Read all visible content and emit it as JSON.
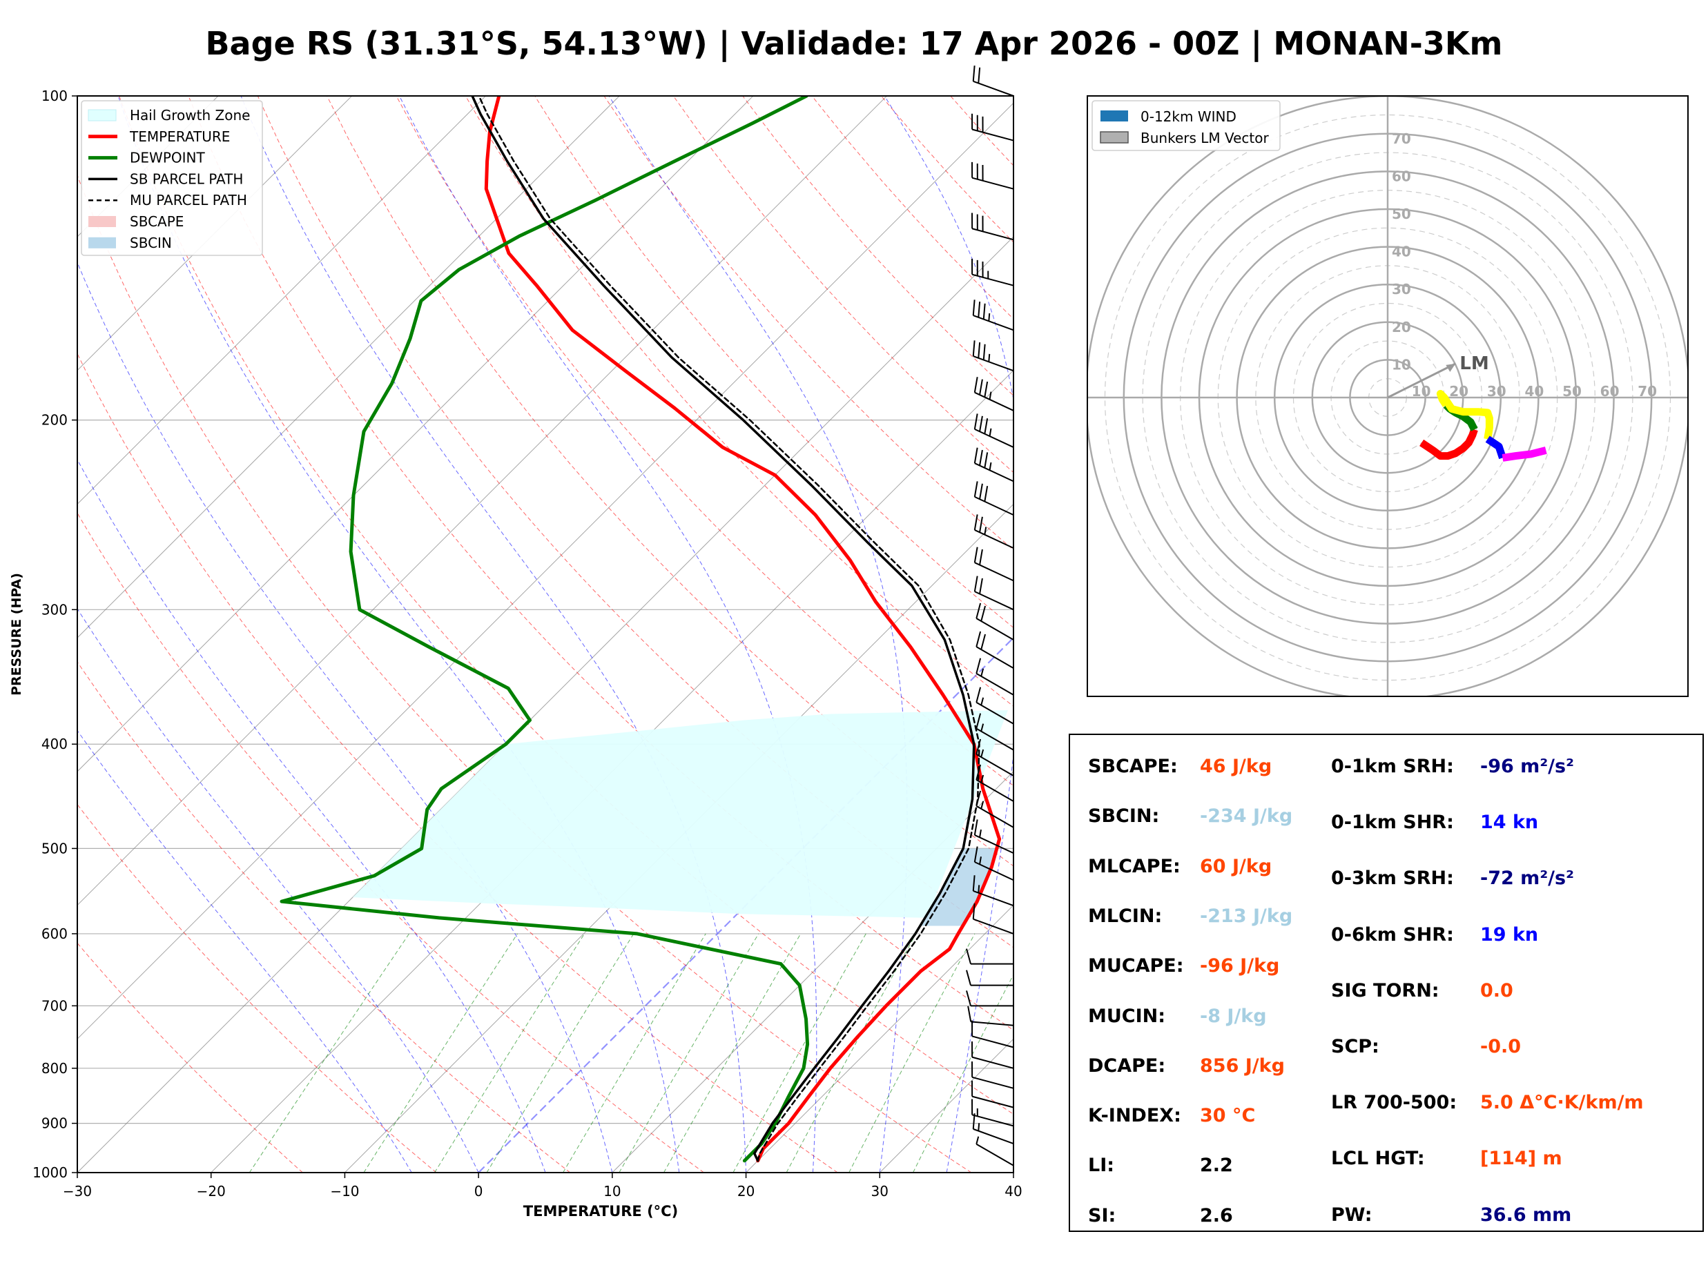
{
  "title": "Bage RS (31.31°S, 54.13°W) | Validade: 17 Apr 2026 - 00Z | MONAN-3Km",
  "colors": {
    "temperature": "#ff0000",
    "dewpoint": "#008000",
    "parcel": "#000000",
    "hail_zone": "#e0ffff",
    "sbcin": "#b8d8ec",
    "dry_adiabat": "#ff0000",
    "moist_adiabat": "#0000ff",
    "mixing_ratio": "#008000",
    "isotherm": "#808080",
    "zero_isotherm": "#6666ff",
    "hodo_grid": "#aaaaaa",
    "red_val": "#ff4500",
    "lightblue_val": "#a6cfe2",
    "navy_val": "#000080",
    "blue_val": "#0000ff",
    "black_val": "#000000"
  },
  "chart_data": [
    {
      "type": "line",
      "name": "skew-t",
      "xlabel": "TEMPERATURE (°C)",
      "ylabel": "PRESSURE (HPA)",
      "xlim": [
        -30,
        40
      ],
      "ylim": [
        1000,
        100
      ],
      "x_ticks": [
        -30,
        -20,
        -10,
        0,
        10,
        20,
        30,
        40
      ],
      "x_tick_labels": [
        "−30",
        "−20",
        "−10",
        "0",
        "10",
        "20",
        "30",
        "40"
      ],
      "y_ticks": [
        1000,
        900,
        800,
        700,
        600,
        500,
        400,
        300,
        200,
        100
      ],
      "y_tick_labels": [
        "1000",
        "900",
        "800",
        "700",
        "600",
        "500",
        "400",
        "300",
        "200",
        "100"
      ],
      "legend_position": "top-left",
      "legend": [
        "Hail Growth Zone",
        "TEMPERATURE",
        "DEWPOINT",
        "SB PARCEL PATH",
        "MU PARCEL PATH",
        "SBCAPE",
        "SBCIN"
      ],
      "series": [
        {
          "name": "TEMPERATURE",
          "points": [
            [
              20.0,
              975
            ],
            [
              19.5,
              950
            ],
            [
              19.5,
              900
            ],
            [
              19.0,
              850
            ],
            [
              18.5,
              800
            ],
            [
              18.2,
              750
            ],
            [
              18.0,
              700
            ],
            [
              18.0,
              650
            ],
            [
              18.5,
              620
            ],
            [
              18.0,
              600
            ],
            [
              17.0,
              560
            ],
            [
              15.5,
              520
            ],
            [
              14.0,
              490
            ],
            [
              9.0,
              440
            ],
            [
              5.0,
              400
            ],
            [
              -1.0,
              360
            ],
            [
              -7.0,
              325
            ],
            [
              -13.0,
              295
            ],
            [
              -18.0,
              270
            ],
            [
              -24.0,
              245
            ],
            [
              -30.0,
              225
            ],
            [
              -36.0,
              212
            ],
            [
              -42.5,
              195
            ],
            [
              -49.0,
              180
            ],
            [
              -56.0,
              165
            ],
            [
              -62.0,
              150
            ],
            [
              -66.5,
              140
            ],
            [
              -70.0,
              130
            ],
            [
              -73.0,
              122
            ],
            [
              -75.0,
              115
            ],
            [
              -77.0,
              108
            ],
            [
              -79.0,
              100
            ]
          ]
        },
        {
          "name": "DEWPOINT",
          "points": [
            [
              19.0,
              975
            ],
            [
              19.0,
              940
            ],
            [
              18.5,
              900
            ],
            [
              17.5,
              850
            ],
            [
              16.5,
              800
            ],
            [
              15.0,
              760
            ],
            [
              13.0,
              720
            ],
            [
              10.0,
              670
            ],
            [
              7.0,
              640
            ],
            [
              -6.0,
              600
            ],
            [
              -22.0,
              580
            ],
            [
              -35.0,
              560
            ],
            [
              -30.0,
              530
            ],
            [
              -28.5,
              500
            ],
            [
              -31.0,
              460
            ],
            [
              -31.5,
              440
            ],
            [
              -30.0,
              400
            ],
            [
              -30.0,
              380
            ],
            [
              -34.0,
              355
            ],
            [
              -43.0,
              325
            ],
            [
              -51.0,
              300
            ],
            [
              -56.0,
              265
            ],
            [
              -60.0,
              235
            ],
            [
              -64.0,
              205
            ],
            [
              -65.5,
              185
            ],
            [
              -67.5,
              168
            ],
            [
              -69.5,
              155
            ],
            [
              -69.0,
              145
            ],
            [
              -67.0,
              135
            ],
            [
              -64.0,
              125
            ],
            [
              -61.0,
              115
            ],
            [
              -58.0,
              106
            ],
            [
              -56.0,
              100
            ]
          ]
        },
        {
          "name": "SB PARCEL PATH",
          "points": [
            [
              20.0,
              975
            ],
            [
              19.2,
              960
            ],
            [
              18.9,
              940
            ],
            [
              18.3,
              900
            ],
            [
              17.8,
              850
            ],
            [
              17.3,
              800
            ],
            [
              16.8,
              750
            ],
            [
              16.2,
              700
            ],
            [
              15.6,
              650
            ],
            [
              14.8,
              600
            ],
            [
              13.6,
              550
            ],
            [
              12.0,
              500
            ],
            [
              9.0,
              450
            ],
            [
              5.0,
              400
            ],
            [
              0.5,
              360
            ],
            [
              -5.0,
              320
            ],
            [
              -11.5,
              285
            ],
            [
              -18.0,
              260
            ],
            [
              -26.5,
              230
            ],
            [
              -36.5,
              200
            ],
            [
              -46.5,
              175
            ],
            [
              -57.0,
              150
            ],
            [
              -66.5,
              130
            ],
            [
              -73.5,
              115
            ],
            [
              -79.0,
              104
            ],
            [
              -81.0,
              100
            ]
          ]
        },
        {
          "name": "MU PARCEL PATH",
          "points": [
            [
              20.0,
              975
            ],
            [
              19.6,
              960
            ],
            [
              19.3,
              940
            ],
            [
              18.7,
              900
            ],
            [
              18.2,
              850
            ],
            [
              17.7,
              800
            ],
            [
              17.2,
              750
            ],
            [
              16.6,
              700
            ],
            [
              16.0,
              650
            ],
            [
              15.2,
              600
            ],
            [
              14.0,
              550
            ],
            [
              12.4,
              500
            ],
            [
              9.4,
              450
            ],
            [
              5.4,
              400
            ],
            [
              0.9,
              360
            ],
            [
              -4.6,
              320
            ],
            [
              -11.0,
              285
            ],
            [
              -17.5,
              260
            ],
            [
              -26.0,
              230
            ],
            [
              -36.0,
              200
            ],
            [
              -46.0,
              175
            ],
            [
              -56.5,
              150
            ],
            [
              -66.0,
              130
            ],
            [
              -73.0,
              115
            ],
            [
              -78.5,
              104
            ],
            [
              -80.5,
              100
            ]
          ]
        }
      ],
      "hail_growth_zone": {
        "upper_points": [
          [
            -30,
            400
          ],
          [
            -22,
            390
          ],
          [
            -14,
            380
          ],
          [
            -8,
            375
          ],
          [
            5,
            372
          ]
        ],
        "lower_points": [
          [
            -30,
            555
          ],
          [
            -20,
            562
          ],
          [
            -10,
            568
          ],
          [
            0,
            575
          ],
          [
            14.5,
            580
          ]
        ]
      },
      "sbcin_region_pressure_range": [
        500,
        590
      ],
      "isotherms": [
        -100,
        -90,
        -80,
        -70,
        -60,
        -50,
        -40,
        -30,
        -20,
        -10,
        0,
        10,
        20,
        30,
        40
      ],
      "dry_adiabats_theta": [
        260,
        270,
        280,
        290,
        300,
        310,
        320,
        330,
        340,
        350,
        360,
        370,
        380,
        390,
        400,
        410,
        420,
        430,
        440,
        450,
        460
      ],
      "moist_adiabats_start": [
        -5,
        0,
        5,
        10,
        15,
        20,
        25,
        30,
        35
      ],
      "mixing_ratios": [
        1,
        2,
        3,
        4,
        6,
        8,
        10,
        14,
        18,
        24,
        32
      ],
      "wind_barbs": [
        {
          "p": 985,
          "dir": 300,
          "spd": 5
        },
        {
          "p": 940,
          "dir": 290,
          "spd": 15
        },
        {
          "p": 905,
          "dir": 285,
          "spd": 15
        },
        {
          "p": 870,
          "dir": 285,
          "spd": 10
        },
        {
          "p": 835,
          "dir": 285,
          "spd": 10
        },
        {
          "p": 800,
          "dir": 285,
          "spd": 10
        },
        {
          "p": 765,
          "dir": 285,
          "spd": 10
        },
        {
          "p": 730,
          "dir": 275,
          "spd": 10
        },
        {
          "p": 700,
          "dir": 270,
          "spd": 10
        },
        {
          "p": 670,
          "dir": 270,
          "spd": 10
        },
        {
          "p": 640,
          "dir": 270,
          "spd": 10
        },
        {
          "p": 600,
          "dir": 290,
          "spd": 10
        },
        {
          "p": 565,
          "dir": 290,
          "spd": 15
        },
        {
          "p": 535,
          "dir": 295,
          "spd": 15
        },
        {
          "p": 505,
          "dir": 295,
          "spd": 15
        },
        {
          "p": 478,
          "dir": 300,
          "spd": 15
        },
        {
          "p": 452,
          "dir": 300,
          "spd": 15
        },
        {
          "p": 428,
          "dir": 300,
          "spd": 15
        },
        {
          "p": 405,
          "dir": 300,
          "spd": 15
        },
        {
          "p": 383,
          "dir": 300,
          "spd": 15
        },
        {
          "p": 360,
          "dir": 300,
          "spd": 15
        },
        {
          "p": 340,
          "dir": 300,
          "spd": 20
        },
        {
          "p": 320,
          "dir": 300,
          "spd": 20
        },
        {
          "p": 300,
          "dir": 295,
          "spd": 20
        },
        {
          "p": 282,
          "dir": 295,
          "spd": 20
        },
        {
          "p": 263,
          "dir": 295,
          "spd": 25
        },
        {
          "p": 245,
          "dir": 295,
          "spd": 30
        },
        {
          "p": 228,
          "dir": 295,
          "spd": 35
        },
        {
          "p": 212,
          "dir": 295,
          "spd": 35
        },
        {
          "p": 196,
          "dir": 295,
          "spd": 35
        },
        {
          "p": 180,
          "dir": 290,
          "spd": 35
        },
        {
          "p": 165,
          "dir": 290,
          "spd": 35
        },
        {
          "p": 150,
          "dir": 285,
          "spd": 35
        },
        {
          "p": 136,
          "dir": 285,
          "spd": 30
        },
        {
          "p": 122,
          "dir": 285,
          "spd": 30
        },
        {
          "p": 110,
          "dir": 285,
          "spd": 30
        },
        {
          "p": 100,
          "dir": 290,
          "spd": 20
        }
      ]
    },
    {
      "type": "line",
      "name": "hodograph",
      "legend_position": "top-left",
      "legend": [
        "0-12km WIND",
        "Bunkers LM Vector"
      ],
      "rings": [
        10,
        20,
        30,
        40,
        50,
        60,
        70
      ],
      "ring_labels": [
        "10",
        "20",
        "30",
        "40",
        "50",
        "60",
        "70"
      ],
      "rlim": [
        0,
        80
      ],
      "lm_label": "LM",
      "lm_vector": [
        18,
        9
      ],
      "segments": [
        {
          "color": "#ff0000",
          "points": [
            [
              9,
              -12
            ],
            [
              12,
              -14
            ],
            [
              14,
              -15.5
            ],
            [
              16,
              -15.5
            ],
            [
              18,
              -14.8
            ],
            [
              20,
              -13.5
            ],
            [
              21.5,
              -12
            ],
            [
              22.5,
              -10
            ],
            [
              23,
              -8.5
            ]
          ]
        },
        {
          "color": "#008000",
          "points": [
            [
              23,
              -8.5
            ],
            [
              22,
              -6.5
            ],
            [
              20,
              -5
            ],
            [
              18,
              -4
            ],
            [
              16.5,
              -3
            ],
            [
              15.5,
              -2
            ]
          ]
        },
        {
          "color": "#ffff00",
          "points": [
            [
              15.5,
              -2
            ],
            [
              14.5,
              -0.5
            ],
            [
              14,
              1
            ],
            [
              15,
              0
            ],
            [
              17,
              -3
            ],
            [
              20,
              -3.8
            ],
            [
              24,
              -3.8
            ],
            [
              26.5,
              -4
            ],
            [
              27,
              -5.5
            ],
            [
              27,
              -8
            ],
            [
              26.5,
              -11
            ]
          ]
        },
        {
          "color": "#0000ff",
          "points": [
            [
              26.5,
              -11
            ],
            [
              28,
              -12
            ],
            [
              29.5,
              -13
            ],
            [
              30,
              -14.5
            ],
            [
              30.5,
              -16
            ]
          ]
        },
        {
          "color": "#ff00ff",
          "points": [
            [
              30.5,
              -16
            ],
            [
              34,
              -15.5
            ],
            [
              38,
              -15
            ],
            [
              42,
              -14
            ]
          ]
        }
      ]
    }
  ],
  "indices": {
    "left": [
      {
        "label": "SBCAPE:",
        "value": "46 J/kg",
        "color": "#ff4500"
      },
      {
        "label": "SBCIN:",
        "value": "-234 J/kg",
        "color": "#a6cfe2"
      },
      {
        "label": "MLCAPE:",
        "value": "60 J/kg",
        "color": "#ff4500"
      },
      {
        "label": "MLCIN:",
        "value": "-213 J/kg",
        "color": "#a6cfe2"
      },
      {
        "label": "MUCAPE:",
        "value": "-96 J/kg",
        "color": "#ff4500"
      },
      {
        "label": "MUCIN:",
        "value": "-8 J/kg",
        "color": "#a6cfe2"
      },
      {
        "label": "DCAPE:",
        "value": "856 J/kg",
        "color": "#ff4500"
      },
      {
        "label": "K-INDEX:",
        "value": "30 °C",
        "color": "#ff4500"
      },
      {
        "label": "LI:",
        "value": "2.2",
        "color": "#000000"
      },
      {
        "label": "SI:",
        "value": "2.6",
        "color": "#000000"
      }
    ],
    "right": [
      {
        "label": "0-1km SRH:",
        "value": "-96 m²/s²",
        "color": "#000080"
      },
      {
        "label": "0-1km SHR:",
        "value": "14 kn",
        "color": "#0000ff"
      },
      {
        "label": "0-3km SRH:",
        "value": "-72 m²/s²",
        "color": "#000080"
      },
      {
        "label": "0-6km SHR:",
        "value": "19 kn",
        "color": "#0000ff"
      },
      {
        "label": "SIG TORN:",
        "value": "0.0",
        "color": "#ff4500"
      },
      {
        "label": "SCP:",
        "value": "-0.0",
        "color": "#ff4500"
      },
      {
        "label": "LR 700-500:",
        "value": "5.0 Δ°C·K/km/m",
        "color": "#ff4500"
      },
      {
        "label": "LCL HGT:",
        "value": "[114] m",
        "color": "#ff4500"
      },
      {
        "label": "PW:",
        "value": "36.6 mm",
        "color": "#000080"
      }
    ]
  }
}
